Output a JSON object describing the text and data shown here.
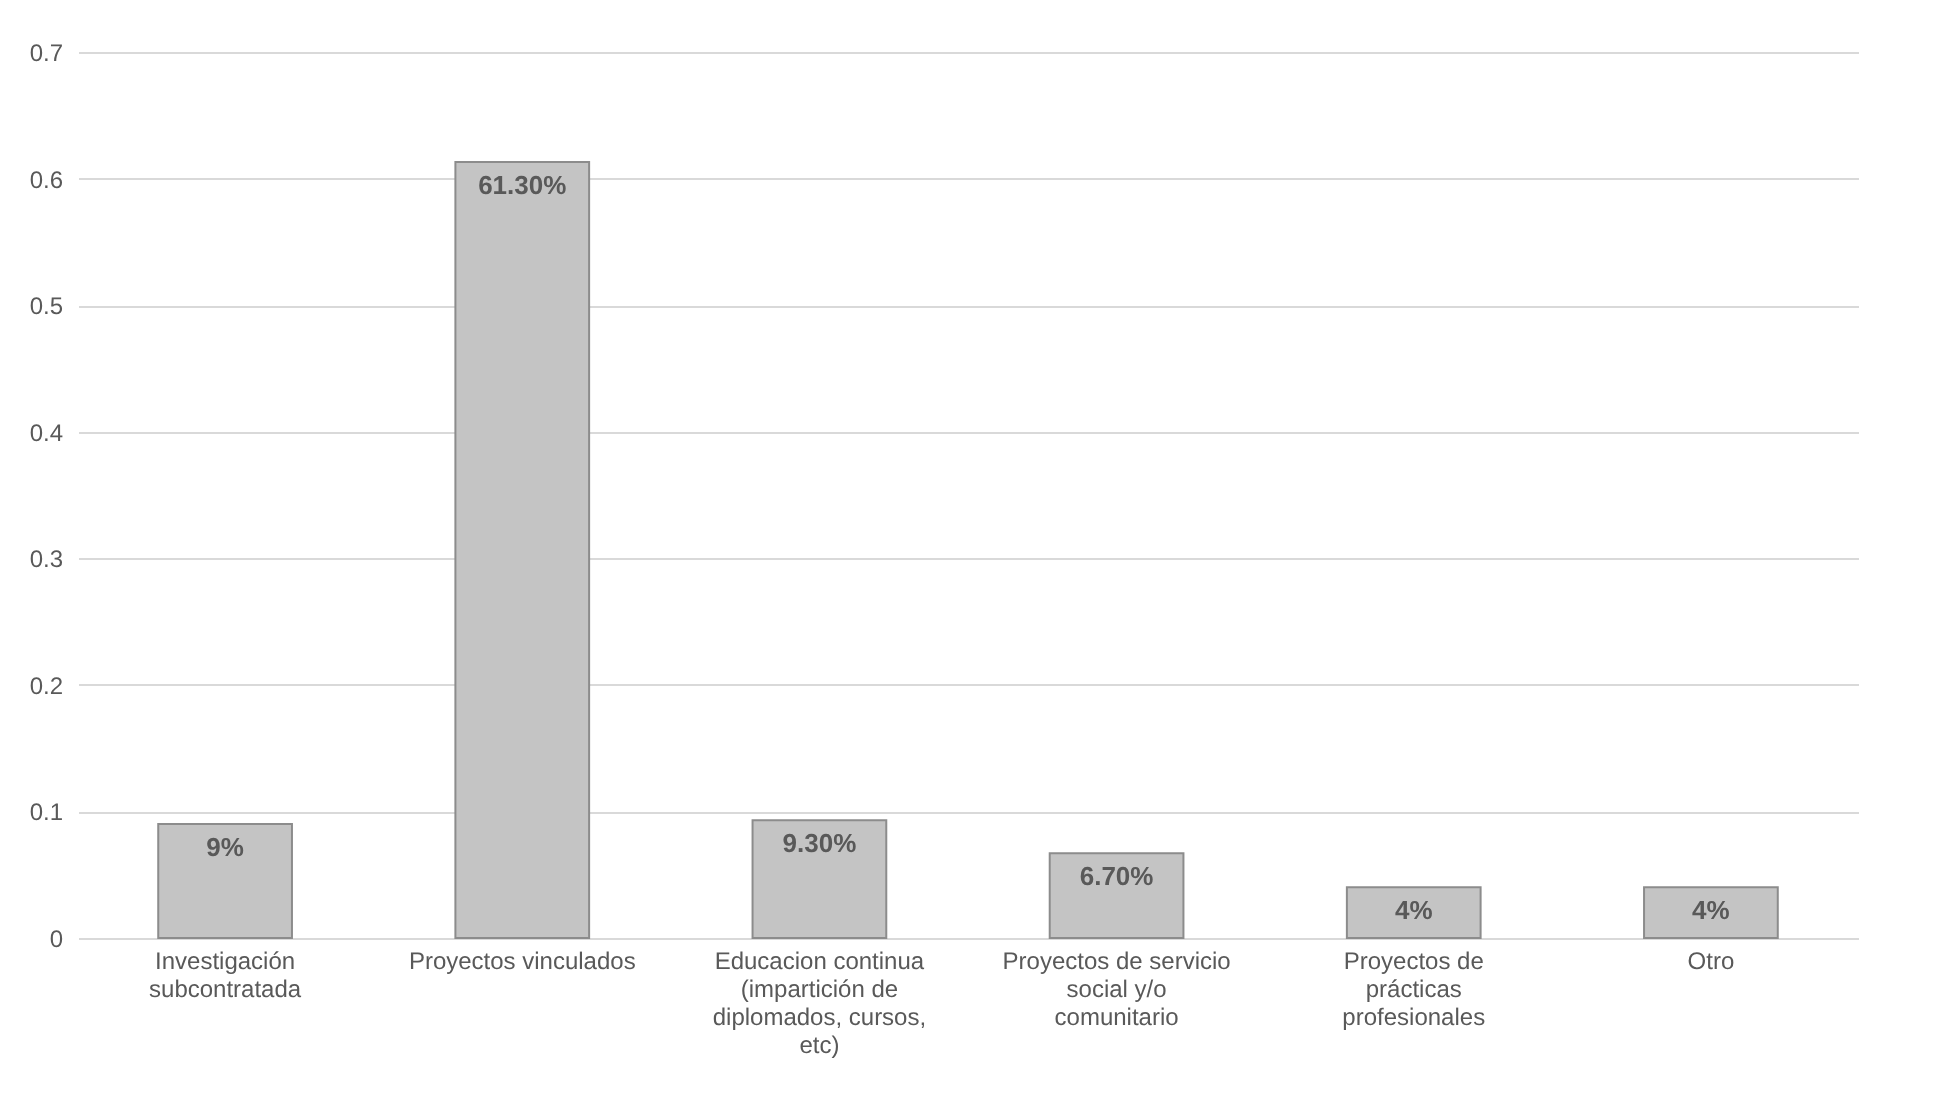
{
  "chart_data": {
    "type": "bar",
    "categories": [
      "Investigación subcontratada",
      "Proyectos vinculados",
      "Educacion continua (impartición de diplomados, cursos, etc)",
      "Proyectos de servicio social y/o comunitario",
      "Proyectos de prácticas profesionales",
      "Otro"
    ],
    "values": [
      0.09,
      0.613,
      0.093,
      0.067,
      0.04,
      0.04
    ],
    "value_labels": [
      "9%",
      "61.30%",
      "9.30%",
      "6.70%",
      "4%",
      "4%"
    ],
    "color": "#c4c4c4",
    "ylim": [
      0,
      0.7
    ],
    "yticks": [
      0,
      0.1,
      0.2,
      0.3,
      0.4,
      0.5,
      0.6,
      0.7
    ],
    "grid": "y"
  }
}
